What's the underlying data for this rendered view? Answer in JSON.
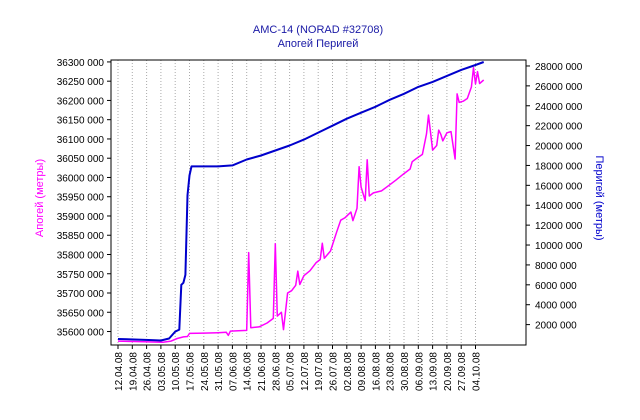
{
  "chart_data": {
    "type": "line",
    "title": "AMC-14 (NORAD #32708)",
    "subtitle": "Апогей  Перигей",
    "colors": {
      "apogee": "#ff00ff",
      "perigee": "#0000cc",
      "title": "#1a1aa6",
      "grid": "#aaaaaa"
    },
    "grid": "vertical dotted",
    "left_axis": {
      "label": "Апогей (метры)",
      "ylim": [
        35565000,
        36305000
      ],
      "ticks": [
        35600000,
        35650000,
        35700000,
        35750000,
        35800000,
        35850000,
        35900000,
        35950000,
        36000000,
        36050000,
        36100000,
        36150000,
        36200000,
        36250000,
        36300000
      ],
      "tick_labels": [
        "35600 000",
        "35650 000",
        "35700 000",
        "35750 000",
        "35800 000",
        "35850 000",
        "35900 000",
        "35950 000",
        "36000 000",
        "36050 000",
        "36100 000",
        "36150 000",
        "36200 000",
        "36250 000",
        "36300 000"
      ]
    },
    "right_axis": {
      "label": "Перигей (метры)",
      "ylim": [
        -50000,
        28600000
      ],
      "ticks": [
        2000000,
        4000000,
        6000000,
        8000000,
        10000000,
        12000000,
        14000000,
        16000000,
        18000000,
        20000000,
        22000000,
        24000000,
        26000000,
        28000000
      ],
      "tick_labels": [
        "2000 000",
        "4000 000",
        "6000 000",
        "8000 000",
        "10000 000",
        "12000 000",
        "14000 000",
        "16000 000",
        "18000 000",
        "20000 000",
        "22000 000",
        "24000 000",
        "26000 000",
        "28000 000"
      ]
    },
    "x_axis": {
      "start": "2008-04-12",
      "end": "2008-10-09",
      "ticks": [
        "2008-04-12",
        "2008-04-19",
        "2008-04-26",
        "2008-05-03",
        "2008-05-10",
        "2008-05-17",
        "2008-05-24",
        "2008-05-31",
        "2008-06-07",
        "2008-06-14",
        "2008-06-21",
        "2008-06-28",
        "2008-07-05",
        "2008-07-12",
        "2008-07-19",
        "2008-07-26",
        "2008-08-02",
        "2008-08-09",
        "2008-08-16",
        "2008-08-23",
        "2008-08-30",
        "2008-09-06",
        "2008-09-13",
        "2008-09-20",
        "2008-09-27",
        "2008-10-04"
      ],
      "tick_labels": [
        "12.04.08",
        "19.04.08",
        "26.04.08",
        "03.05.08",
        "10.05.08",
        "17.05.08",
        "24.05.08",
        "31.05.08",
        "07.06.08",
        "14.06.08",
        "21.06.08",
        "28.06.08",
        "05.07.08",
        "12.07.08",
        "19.07.08",
        "26.07.08",
        "02.08.08",
        "09.08.08",
        "16.08.08",
        "23.08.08",
        "30.08.08",
        "06.09.08",
        "13.09.08",
        "20.09.08",
        "27.09.08",
        "04.10.08"
      ]
    },
    "series": [
      {
        "name": "Апогей",
        "axis": "left",
        "points": [
          [
            "2008-04-12",
            35575000
          ],
          [
            "2008-04-20",
            35574000
          ],
          [
            "2008-04-27",
            35573000
          ],
          [
            "2008-05-04",
            35572000
          ],
          [
            "2008-05-08",
            35575000
          ],
          [
            "2008-05-11",
            35582000
          ],
          [
            "2008-05-14",
            35586000
          ],
          [
            "2008-05-16",
            35587000
          ],
          [
            "2008-05-17",
            35595000
          ],
          [
            "2008-05-24",
            35596000
          ],
          [
            "2008-05-31",
            35597000
          ],
          [
            "2008-06-04",
            35598000
          ],
          [
            "2008-06-05",
            35590000
          ],
          [
            "2008-06-06",
            35601000
          ],
          [
            "2008-06-10",
            35602000
          ],
          [
            "2008-06-14",
            35603000
          ],
          [
            "2008-06-15",
            35805000
          ],
          [
            "2008-06-16",
            35610000
          ],
          [
            "2008-06-20",
            35612000
          ],
          [
            "2008-06-24",
            35622000
          ],
          [
            "2008-06-27",
            35634000
          ],
          [
            "2008-06-28",
            35828000
          ],
          [
            "2008-06-29",
            35640000
          ],
          [
            "2008-07-01",
            35650000
          ],
          [
            "2008-07-02",
            35605000
          ],
          [
            "2008-07-04",
            35700000
          ],
          [
            "2008-07-06",
            35706000
          ],
          [
            "2008-07-08",
            35720000
          ],
          [
            "2008-07-09",
            35757000
          ],
          [
            "2008-07-10",
            35722000
          ],
          [
            "2008-07-12",
            35745000
          ],
          [
            "2008-07-15",
            35758000
          ],
          [
            "2008-07-18",
            35779000
          ],
          [
            "2008-07-20",
            35787000
          ],
          [
            "2008-07-21",
            35829000
          ],
          [
            "2008-07-22",
            35790000
          ],
          [
            "2008-07-25",
            35809000
          ],
          [
            "2008-07-28",
            35858000
          ],
          [
            "2008-07-30",
            35889000
          ],
          [
            "2008-08-01",
            35895000
          ],
          [
            "2008-08-04",
            35910000
          ],
          [
            "2008-08-05",
            35888000
          ],
          [
            "2008-08-07",
            35920000
          ],
          [
            "2008-08-08",
            36028000
          ],
          [
            "2008-08-09",
            35975000
          ],
          [
            "2008-08-11",
            35940000
          ],
          [
            "2008-08-12",
            36046000
          ],
          [
            "2008-08-13",
            35952000
          ],
          [
            "2008-08-15",
            35960000
          ],
          [
            "2008-08-19",
            35965000
          ],
          [
            "2008-08-22",
            35977000
          ],
          [
            "2008-08-26",
            35993000
          ],
          [
            "2008-08-30",
            36010000
          ],
          [
            "2008-09-02",
            36022000
          ],
          [
            "2008-09-03",
            36041000
          ],
          [
            "2008-09-05",
            36049000
          ],
          [
            "2008-09-08",
            36060000
          ],
          [
            "2008-09-10",
            36113000
          ],
          [
            "2008-09-11",
            36162000
          ],
          [
            "2008-09-13",
            36071000
          ],
          [
            "2008-09-15",
            36083000
          ],
          [
            "2008-09-16",
            36123000
          ],
          [
            "2008-09-17",
            36112000
          ],
          [
            "2008-09-18",
            36095000
          ],
          [
            "2008-09-20",
            36116000
          ],
          [
            "2008-09-22",
            36119000
          ],
          [
            "2008-09-24",
            36048000
          ],
          [
            "2008-09-25",
            36217000
          ],
          [
            "2008-09-26",
            36195000
          ],
          [
            "2008-09-28",
            36198000
          ],
          [
            "2008-09-30",
            36205000
          ],
          [
            "2008-10-02",
            36235000
          ],
          [
            "2008-10-03",
            36285000
          ],
          [
            "2008-10-04",
            36243000
          ],
          [
            "2008-10-05",
            36275000
          ],
          [
            "2008-10-06",
            36244000
          ],
          [
            "2008-10-08",
            36253000
          ]
        ]
      },
      {
        "name": "Перигей",
        "axis": "right",
        "points": [
          [
            "2008-04-12",
            550000
          ],
          [
            "2008-04-20",
            500000
          ],
          [
            "2008-04-27",
            450000
          ],
          [
            "2008-05-03",
            400000
          ],
          [
            "2008-05-07",
            600000
          ],
          [
            "2008-05-10",
            1300000
          ],
          [
            "2008-05-12",
            1500000
          ],
          [
            "2008-05-13",
            6000000
          ],
          [
            "2008-05-14",
            6200000
          ],
          [
            "2008-05-15",
            7000000
          ],
          [
            "2008-05-16",
            15000000
          ],
          [
            "2008-05-17",
            17000000
          ],
          [
            "2008-05-18",
            17900000
          ],
          [
            "2008-05-31",
            17900000
          ],
          [
            "2008-06-07",
            18000000
          ],
          [
            "2008-06-14",
            18600000
          ],
          [
            "2008-06-21",
            19000000
          ],
          [
            "2008-06-28",
            19500000
          ],
          [
            "2008-07-05",
            20000000
          ],
          [
            "2008-07-12",
            20600000
          ],
          [
            "2008-07-19",
            21300000
          ],
          [
            "2008-07-26",
            22000000
          ],
          [
            "2008-08-02",
            22700000
          ],
          [
            "2008-08-09",
            23300000
          ],
          [
            "2008-08-16",
            23900000
          ],
          [
            "2008-08-23",
            24600000
          ],
          [
            "2008-08-30",
            25200000
          ],
          [
            "2008-09-06",
            25900000
          ],
          [
            "2008-09-13",
            26400000
          ],
          [
            "2008-09-20",
            27000000
          ],
          [
            "2008-09-27",
            27600000
          ],
          [
            "2008-10-04",
            28100000
          ],
          [
            "2008-10-08",
            28400000
          ]
        ]
      }
    ]
  }
}
